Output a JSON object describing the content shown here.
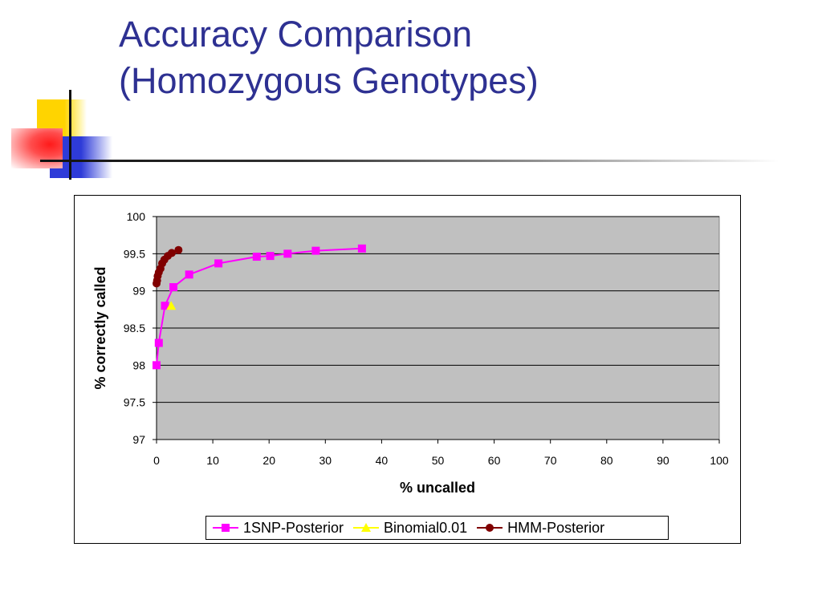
{
  "slide": {
    "title_line1": "Accuracy Comparison",
    "title_line2": "(Homozygous Genotypes)"
  },
  "colors": {
    "title": "#2e3192",
    "plot_area": "#c0c0c0",
    "series_1snp": "#ff00ff",
    "series_binomial": "#ffff00",
    "series_hmm": "#800000"
  },
  "chart_data": {
    "type": "line",
    "xlabel": "% uncalled",
    "ylabel": "% correctly called",
    "xlim": [
      0,
      100
    ],
    "ylim": [
      97,
      100
    ],
    "x_ticks": [
      "0",
      "10",
      "20",
      "30",
      "40",
      "50",
      "60",
      "70",
      "80",
      "90",
      "100"
    ],
    "y_ticks": [
      "97",
      "97.5",
      "98",
      "98.5",
      "99",
      "99.5",
      "100"
    ],
    "grid": "horizontal",
    "legend_position": "bottom",
    "series": [
      {
        "name": "1SNP-Posterior",
        "marker": "square",
        "color": "#ff00ff",
        "points": [
          [
            0,
            98.0
          ],
          [
            0.4,
            98.3
          ],
          [
            1.5,
            98.8
          ],
          [
            3.0,
            99.05
          ],
          [
            5.8,
            99.22
          ],
          [
            11,
            99.37
          ],
          [
            17.8,
            99.46
          ],
          [
            20.2,
            99.47
          ],
          [
            23.3,
            99.5
          ],
          [
            28.3,
            99.54
          ],
          [
            36.5,
            99.57
          ]
        ]
      },
      {
        "name": "Binomial0.01",
        "marker": "triangle",
        "color": "#ffff00",
        "points": [
          [
            2.6,
            98.8
          ]
        ]
      },
      {
        "name": "HMM-Posterior",
        "marker": "circle",
        "color": "#800000",
        "points": [
          [
            0,
            99.1
          ],
          [
            0.1,
            99.14
          ],
          [
            0.2,
            99.2
          ],
          [
            0.4,
            99.25
          ],
          [
            0.7,
            99.3
          ],
          [
            1.0,
            99.37
          ],
          [
            1.4,
            99.42
          ],
          [
            2.0,
            99.47
          ],
          [
            2.7,
            99.51
          ],
          [
            3.9,
            99.55
          ]
        ]
      }
    ]
  }
}
